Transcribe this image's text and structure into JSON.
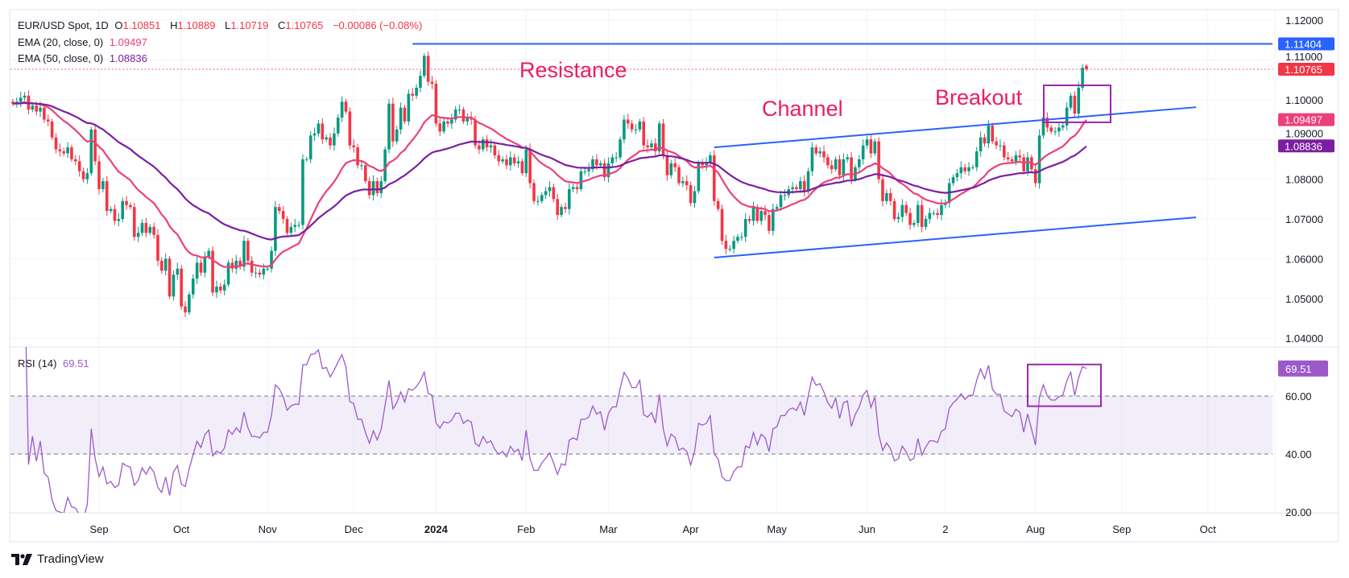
{
  "legend": {
    "symbol": "EUR/USD Spot, 1D",
    "open_label": "O",
    "open": "1.10851",
    "high_label": "H",
    "high": "1.10889",
    "low_label": "L",
    "low": "1.10719",
    "close_label": "C",
    "close": "1.10765",
    "change": "−0.00086 (−0.08%)",
    "ema20_label": "EMA (20, close, 0)",
    "ema20_value": "1.09497",
    "ema50_label": "EMA (50, close, 0)",
    "ema50_value": "1.08836"
  },
  "rsi": {
    "label": "RSI (14)",
    "value": "69.51",
    "last": 69.51,
    "levels": [
      60,
      40
    ],
    "tick_labels": [
      "60.00",
      "40.00",
      "20.00"
    ]
  },
  "price_axis": {
    "tick_labels": [
      "1.12000",
      "1.11000",
      "1.10000",
      "1.09000",
      "1.08000",
      "1.07000",
      "1.06000",
      "1.05000",
      "1.04000"
    ]
  },
  "badges": [
    {
      "text": "1.11404",
      "color": "#2962ff"
    },
    {
      "text": "1.10765",
      "color": "#f23645"
    },
    {
      "text": "1.09497",
      "color": "#ec407a"
    },
    {
      "text": "1.08836",
      "color": "#7b1fa2"
    }
  ],
  "annotations": {
    "resistance": {
      "text": "Resistance",
      "level": 1.11404
    },
    "channel": {
      "text": "Channel",
      "upper": [
        1.088,
        1.0981
      ],
      "lower": [
        1.0603,
        1.0704
      ]
    },
    "breakout": {
      "text": "Breakout",
      "box": [
        1.0943,
        1.1036
      ]
    },
    "rsi_box": [
      56.5,
      70.9
    ]
  },
  "colors": {
    "up": "#089981",
    "down": "#f23645",
    "ema20": "#ec407a",
    "ema50": "#7b1fa2",
    "lines": "#2962ff",
    "rsi": "#9c59c9",
    "box": "#9c27b0",
    "note": "#e91e63"
  },
  "time_axis": {
    "labels": [
      "Sep",
      "Oct",
      "Nov",
      "Dec",
      "2024",
      "Feb",
      "Mar",
      "Apr",
      "May",
      "Jun",
      "2",
      "Aug",
      "Sep",
      "Oct"
    ]
  },
  "footer": {
    "brand": "TradingView"
  },
  "chart_data": {
    "type": "candlestick",
    "title": "EUR/USD Spot, 1D",
    "ylim": [
      1.04,
      1.12
    ],
    "last_bar": {
      "open": 1.10851,
      "high": 1.10889,
      "low": 1.10719,
      "close": 1.10765
    },
    "close": [
      1.099,
      1.0995,
      1.1005,
      1.101,
      1.0975,
      1.0985,
      1.097,
      1.098,
      1.095,
      1.0945,
      1.0905,
      1.0875,
      1.087,
      1.0865,
      1.088,
      1.085,
      1.0845,
      1.082,
      1.08,
      1.0815,
      1.0925,
      1.0845,
      1.0775,
      1.0795,
      1.072,
      1.0725,
      1.0695,
      1.07,
      1.0745,
      1.0735,
      1.073,
      1.0655,
      1.0665,
      1.069,
      1.0665,
      1.068,
      1.066,
      1.0595,
      1.057,
      1.06,
      1.0505,
      1.056,
      1.0575,
      1.048,
      1.0465,
      1.051,
      1.055,
      1.059,
      1.0565,
      1.0605,
      1.062,
      1.0515,
      1.053,
      1.052,
      1.0535,
      1.059,
      1.0575,
      1.0595,
      1.058,
      1.0645,
      1.0595,
      1.0565,
      1.0565,
      1.056,
      1.0575,
      1.0575,
      1.062,
      1.073,
      1.072,
      1.07,
      1.0665,
      1.068,
      1.0685,
      1.0685,
      1.085,
      1.085,
      1.091,
      1.0915,
      1.094,
      1.09,
      1.0905,
      1.0885,
      1.0915,
      1.0955,
      1.0995,
      1.097,
      1.0885,
      1.088,
      1.0835,
      1.0835,
      1.0795,
      1.076,
      1.0795,
      1.0765,
      1.0795,
      1.0875,
      1.099,
      1.0895,
      1.0925,
      1.098,
      1.0945,
      1.1015,
      1.101,
      1.103,
      1.106,
      1.111,
      1.1045,
      1.104,
      1.094,
      1.092,
      1.0945,
      1.094,
      1.095,
      1.0975,
      1.0975,
      1.0945,
      1.0955,
      1.095,
      1.0885,
      1.0875,
      1.09,
      1.088,
      1.0885,
      1.086,
      1.0845,
      1.085,
      1.0835,
      1.0855,
      1.084,
      1.0845,
      1.0815,
      1.0875,
      1.079,
      1.0745,
      1.0745,
      1.076,
      1.077,
      1.078,
      1.075,
      1.071,
      1.073,
      1.0725,
      1.0775,
      1.078,
      1.0775,
      1.082,
      1.082,
      1.0825,
      1.085,
      1.0835,
      1.084,
      1.0805,
      1.084,
      1.0855,
      1.0855,
      1.09,
      1.095,
      1.094,
      1.0925,
      1.0925,
      1.0945,
      1.0885,
      1.088,
      1.089,
      1.087,
      1.094,
      1.086,
      1.081,
      1.084,
      1.083,
      1.079,
      1.0795,
      1.0785,
      1.074,
      1.077,
      1.084,
      1.0835,
      1.084,
      1.086,
      1.0745,
      1.0725,
      1.0645,
      1.0625,
      1.0625,
      1.0645,
      1.0655,
      1.0655,
      1.07,
      1.0695,
      1.073,
      1.0695,
      1.072,
      1.071,
      1.067,
      1.0725,
      1.073,
      1.076,
      1.076,
      1.0775,
      1.078,
      1.0775,
      1.0795,
      1.077,
      1.082,
      1.088,
      1.0865,
      1.087,
      1.0855,
      1.0835,
      1.0825,
      1.085,
      1.081,
      1.085,
      1.0855,
      1.08,
      1.083,
      1.085,
      1.0885,
      1.09,
      1.0865,
      1.0895,
      1.08,
      1.0745,
      1.0765,
      1.0745,
      1.07,
      1.0705,
      1.0735,
      1.0715,
      1.0685,
      1.069,
      1.0735,
      1.068,
      1.07,
      1.0715,
      1.0715,
      1.071,
      1.0735,
      1.074,
      1.079,
      1.0805,
      1.0815,
      1.083,
      1.082,
      1.083,
      1.083,
      1.087,
      1.0905,
      1.089,
      1.0935,
      1.0895,
      1.0885,
      1.0885,
      1.0855,
      1.085,
      1.0845,
      1.086,
      1.0855,
      1.082,
      1.0855,
      1.0825,
      1.079,
      1.091,
      1.0955,
      1.093,
      1.092,
      1.092,
      1.093,
      1.0935,
      1.098,
      1.101,
      1.0965,
      1.103,
      1.108,
      1.10765
    ]
  }
}
